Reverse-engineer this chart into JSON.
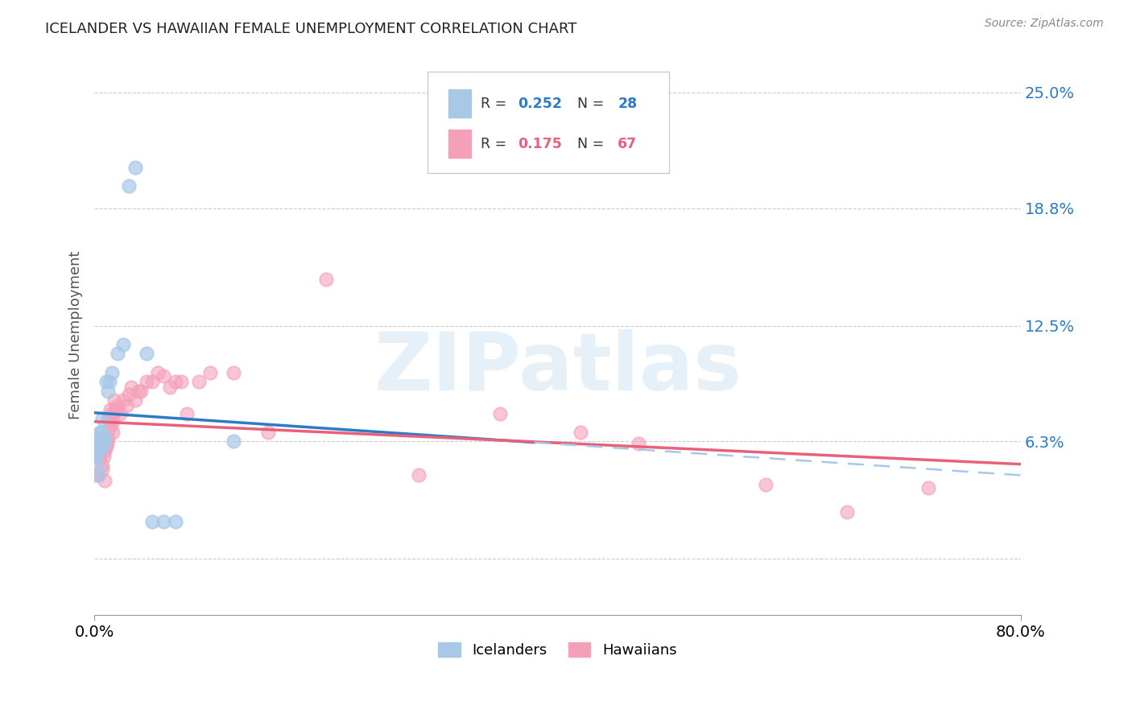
{
  "title": "ICELANDER VS HAWAIIAN FEMALE UNEMPLOYMENT CORRELATION CHART",
  "source": "Source: ZipAtlas.com",
  "ylabel": "Female Unemployment",
  "xlim": [
    0.0,
    0.8
  ],
  "ylim": [
    -0.03,
    0.27
  ],
  "watermark": "ZIPatlas",
  "ytick_vals": [
    0.0,
    0.063,
    0.125,
    0.188,
    0.25
  ],
  "ytick_labels": [
    "",
    "6.3%",
    "12.5%",
    "18.8%",
    "25.0%"
  ],
  "icelander_color": "#a8c8e8",
  "hawaiian_color": "#f4a0b8",
  "trend_blue": "#2a7cc7",
  "trend_pink": "#e8607a",
  "trend_dashed_color": "#a8c8e8",
  "label_blue": "#2a7cc7",
  "icelanders_x": [
    0.001,
    0.002,
    0.002,
    0.003,
    0.003,
    0.004,
    0.004,
    0.005,
    0.005,
    0.006,
    0.006,
    0.007,
    0.007,
    0.008,
    0.009,
    0.01,
    0.012,
    0.013,
    0.015,
    0.02,
    0.025,
    0.03,
    0.035,
    0.045,
    0.05,
    0.06,
    0.07,
    0.12
  ],
  "icelanders_y": [
    0.055,
    0.05,
    0.062,
    0.045,
    0.06,
    0.058,
    0.065,
    0.063,
    0.068,
    0.06,
    0.068,
    0.065,
    0.075,
    0.062,
    0.065,
    0.095,
    0.09,
    0.095,
    0.1,
    0.11,
    0.115,
    0.2,
    0.21,
    0.11,
    0.02,
    0.02,
    0.02,
    0.063
  ],
  "hawaiians_x": [
    0.001,
    0.001,
    0.001,
    0.002,
    0.002,
    0.002,
    0.003,
    0.003,
    0.003,
    0.004,
    0.004,
    0.005,
    0.005,
    0.005,
    0.006,
    0.006,
    0.007,
    0.007,
    0.007,
    0.008,
    0.008,
    0.009,
    0.009,
    0.01,
    0.01,
    0.011,
    0.012,
    0.012,
    0.013,
    0.013,
    0.014,
    0.015,
    0.015,
    0.016,
    0.016,
    0.017,
    0.018,
    0.019,
    0.02,
    0.022,
    0.025,
    0.028,
    0.03,
    0.032,
    0.035,
    0.038,
    0.04,
    0.045,
    0.05,
    0.055,
    0.06,
    0.065,
    0.07,
    0.075,
    0.08,
    0.09,
    0.1,
    0.12,
    0.15,
    0.2,
    0.28,
    0.35,
    0.42,
    0.47,
    0.58,
    0.65,
    0.72
  ],
  "hawaiians_y": [
    0.06,
    0.062,
    0.045,
    0.06,
    0.058,
    0.055,
    0.063,
    0.058,
    0.045,
    0.06,
    0.062,
    0.062,
    0.06,
    0.055,
    0.062,
    0.06,
    0.062,
    0.05,
    0.048,
    0.062,
    0.055,
    0.058,
    0.042,
    0.06,
    0.063,
    0.062,
    0.075,
    0.065,
    0.075,
    0.07,
    0.08,
    0.078,
    0.072,
    0.075,
    0.068,
    0.085,
    0.08,
    0.08,
    0.082,
    0.078,
    0.085,
    0.082,
    0.088,
    0.092,
    0.085,
    0.09,
    0.09,
    0.095,
    0.095,
    0.1,
    0.098,
    0.092,
    0.095,
    0.095,
    0.078,
    0.095,
    0.1,
    0.1,
    0.068,
    0.15,
    0.045,
    0.078,
    0.068,
    0.062,
    0.04,
    0.025,
    0.038
  ]
}
